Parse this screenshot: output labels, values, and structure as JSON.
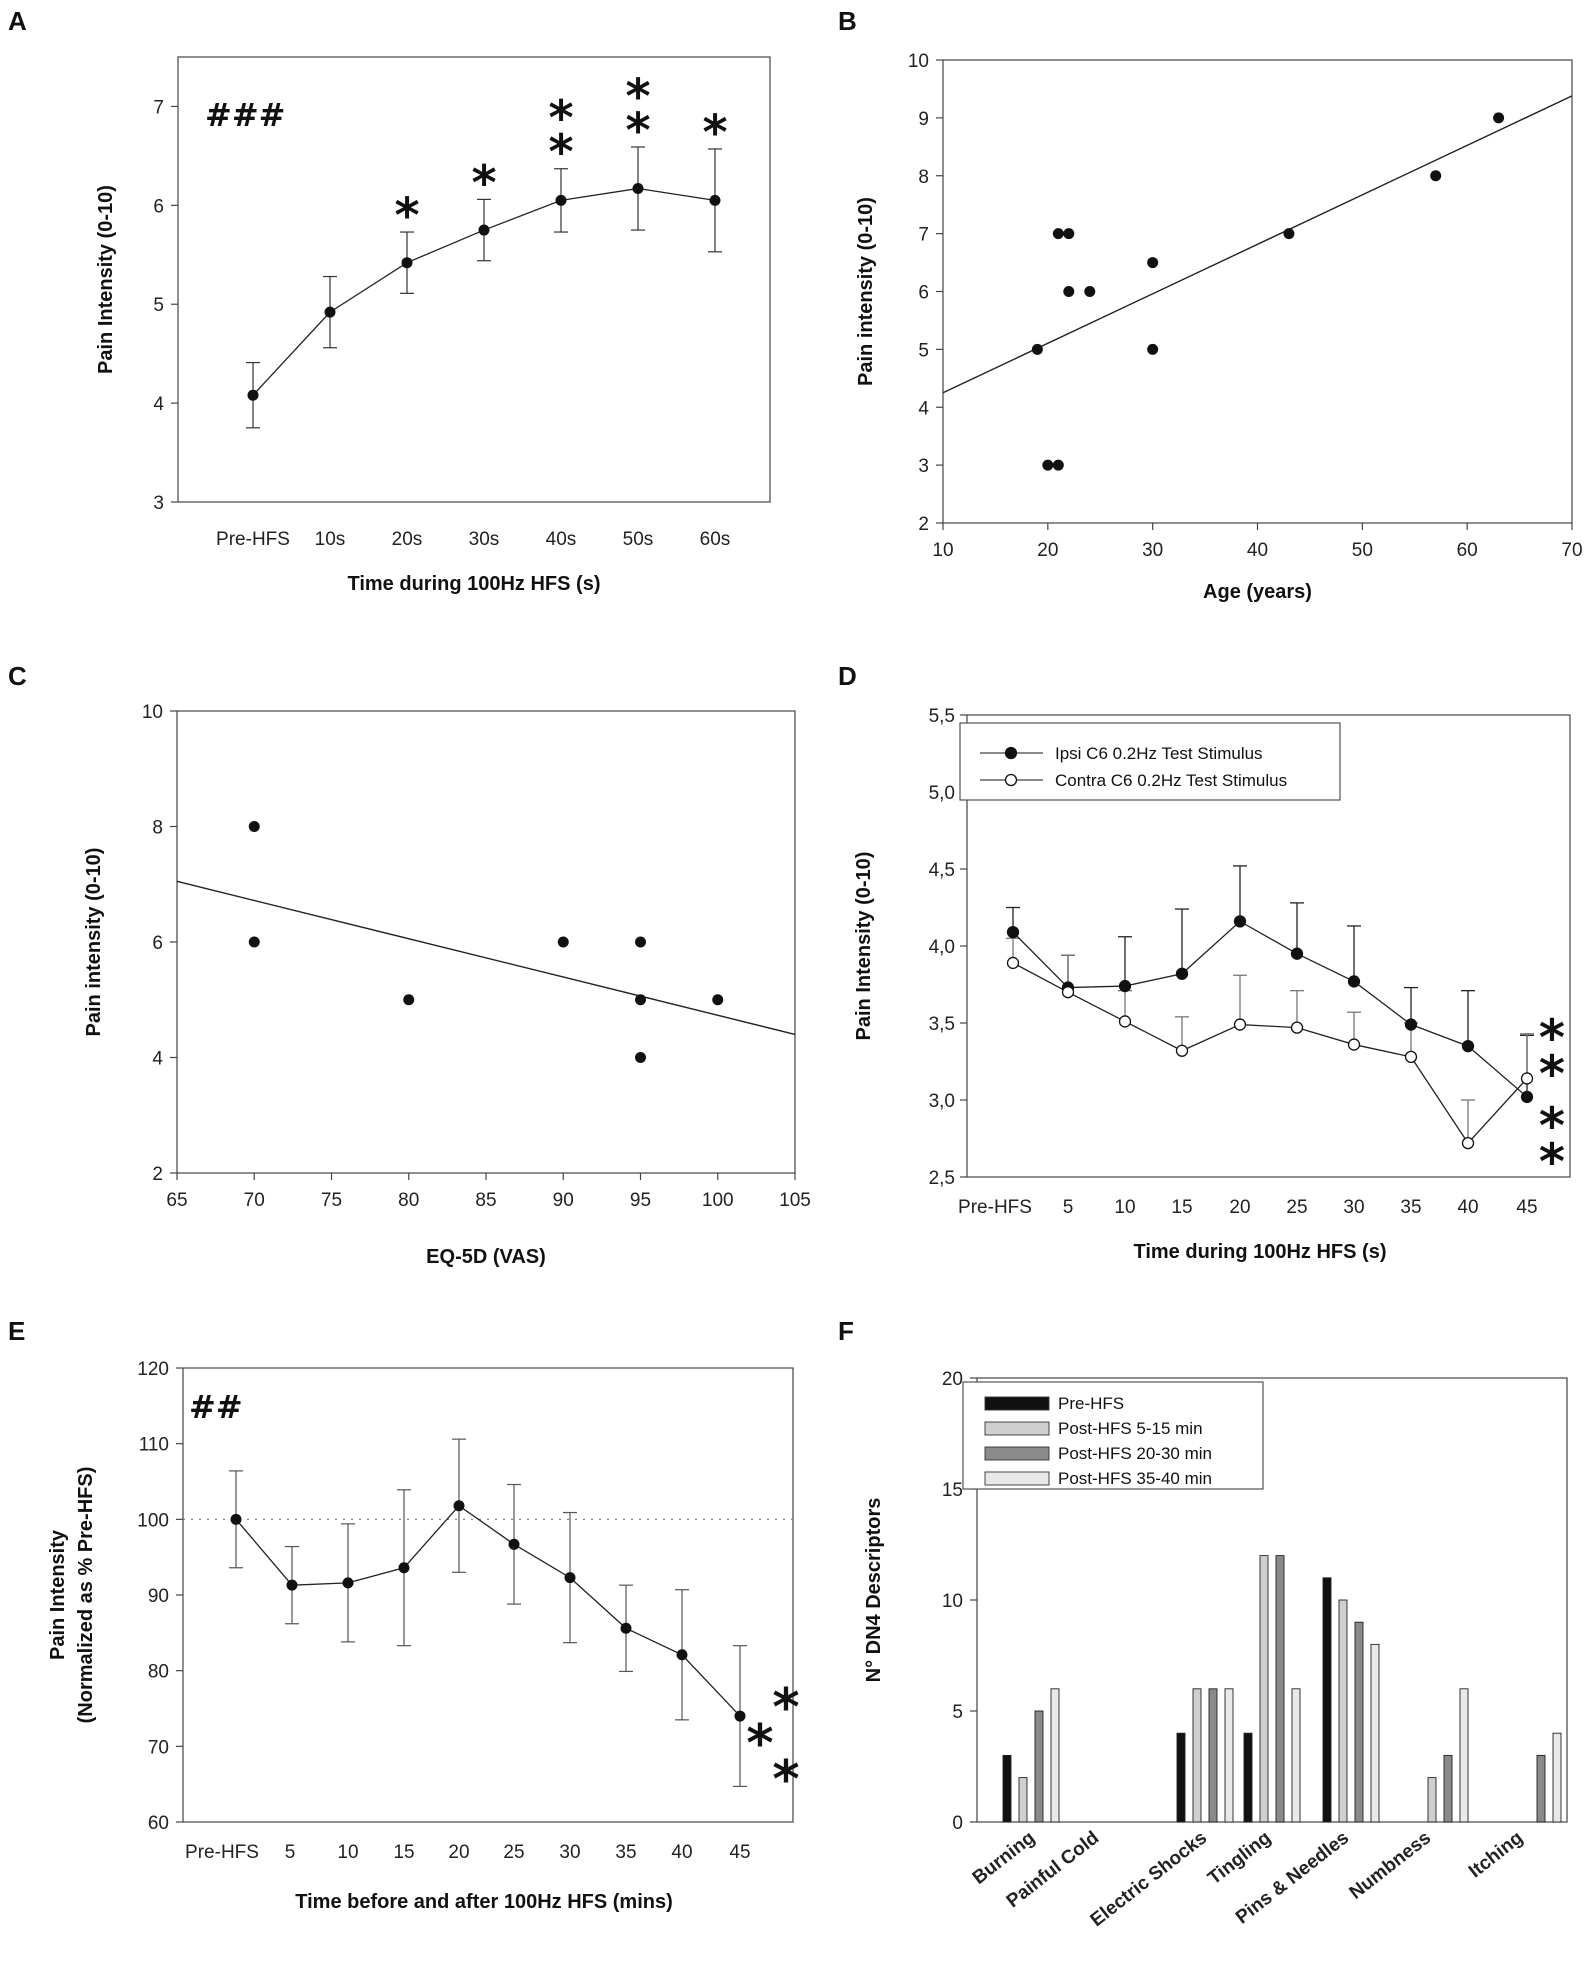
{
  "panels": [
    "A",
    "B",
    "C",
    "D",
    "E",
    "F"
  ],
  "chart_data": [
    {
      "panel": "A",
      "type": "line",
      "categories": [
        "Pre-HFS",
        "10s",
        "20s",
        "30s",
        "40s",
        "50s",
        "60s"
      ],
      "values": [
        4.08,
        4.92,
        5.42,
        5.75,
        6.05,
        6.17,
        6.05
      ],
      "errors": [
        0.33,
        0.36,
        0.31,
        0.31,
        0.32,
        0.42,
        0.52
      ],
      "ylim": [
        3,
        7.5
      ],
      "yticks": [
        "3",
        "4",
        "5",
        "6",
        "7"
      ],
      "xlabel": "Time during 100Hz HFS (s)",
      "ylabel": "Pain Intensity (0-10)",
      "annotations": {
        "hash": "###",
        "sig": [
          "",
          "",
          "*",
          "*",
          "**",
          "**",
          "*"
        ]
      }
    },
    {
      "panel": "B",
      "type": "scatter",
      "x": [
        19,
        20,
        21,
        21,
        22,
        22,
        24,
        30,
        30,
        43,
        57,
        63
      ],
      "y": [
        5,
        3,
        3,
        7,
        7,
        6,
        6,
        6.5,
        5,
        7,
        8,
        9
      ],
      "fit": [
        [
          10,
          4.25
        ],
        [
          70,
          9.38
        ]
      ],
      "xlim": [
        10,
        70
      ],
      "ylim": [
        2,
        10
      ],
      "xticks": [
        "10",
        "20",
        "30",
        "40",
        "50",
        "60",
        "70"
      ],
      "yticks": [
        "2",
        "3",
        "4",
        "5",
        "6",
        "7",
        "8",
        "9",
        "10"
      ],
      "xlabel": "Age (years)",
      "ylabel": "Pain intensity (0-10)"
    },
    {
      "panel": "C",
      "type": "scatter",
      "x": [
        70,
        70,
        80,
        90,
        95,
        95,
        95,
        100
      ],
      "y": [
        8,
        6,
        5,
        6,
        6,
        5,
        4,
        5
      ],
      "fit": [
        [
          65,
          7.05
        ],
        [
          105,
          4.4
        ]
      ],
      "xlim": [
        65,
        105
      ],
      "ylim": [
        2,
        10
      ],
      "xticks": [
        "65",
        "70",
        "75",
        "80",
        "85",
        "90",
        "95",
        "100",
        "105"
      ],
      "yticks": [
        "2",
        "4",
        "6",
        "8",
        "10"
      ],
      "xlabel": "EQ-5D (VAS)",
      "ylabel": "Pain intensity (0-10)"
    },
    {
      "panel": "D",
      "type": "line",
      "categories": [
        "Pre-HFS",
        "5",
        "10",
        "15",
        "20",
        "25",
        "30",
        "35",
        "40",
        "45"
      ],
      "series": [
        {
          "name": "Ipsi C6 0.2Hz Test Stimulus",
          "values": [
            4.09,
            3.73,
            3.74,
            3.82,
            4.16,
            3.95,
            3.77,
            3.49,
            3.35,
            3.02
          ],
          "errors": [
            0.16,
            0.21,
            0.32,
            0.42,
            0.36,
            0.33,
            0.36,
            0.24,
            0.36,
            0.4
          ]
        },
        {
          "name": "Contra C6 0.2Hz Test Stimulus",
          "values": [
            3.89,
            3.7,
            3.51,
            3.32,
            3.49,
            3.47,
            3.36,
            3.28,
            2.72,
            3.14
          ],
          "errors": [
            0.16,
            0.24,
            0.2,
            0.22,
            0.32,
            0.24,
            0.21,
            0.22,
            0.28,
            0.29
          ]
        }
      ],
      "ylim": [
        2.5,
        5.5
      ],
      "yticks": [
        "2,5",
        "3,0",
        "3,5",
        "4,0",
        "4,5",
        "5,0",
        "5,5"
      ],
      "xlabel": "Time during 100Hz HFS (s)",
      "ylabel": "Pain Intensity (0-10)",
      "annotations": {
        "sig_upper": "**",
        "sig_lower": "**"
      }
    },
    {
      "panel": "E",
      "type": "line",
      "categories": [
        "Pre-HFS",
        "5",
        "10",
        "15",
        "20",
        "25",
        "30",
        "35",
        "40",
        "45"
      ],
      "values": [
        100,
        91.3,
        91.6,
        93.6,
        101.8,
        96.7,
        92.3,
        85.6,
        82.1,
        74
      ],
      "errors": [
        6.4,
        5.1,
        7.8,
        10.3,
        8.8,
        7.9,
        8.6,
        5.7,
        8.6,
        9.3
      ],
      "reference": 100,
      "ylim": [
        60,
        120
      ],
      "yticks": [
        "60",
        "70",
        "80",
        "90",
        "100",
        "110",
        "120"
      ],
      "xlabel": "Time before and after 100Hz HFS (mins)",
      "ylabel_lines": [
        "Pain Intensity",
        "(Normalized as % Pre-HFS)"
      ],
      "annotations": {
        "hash": "##",
        "sig": "***"
      }
    },
    {
      "panel": "F",
      "type": "bar",
      "categories": [
        "Burning",
        "Painful Cold",
        "Electric Shocks",
        "Tingling",
        "Pins & Needles",
        "Numbness",
        "Itching"
      ],
      "series": [
        {
          "name": "Pre-HFS",
          "values": [
            3,
            0,
            4,
            4,
            11,
            0,
            0
          ],
          "color": "#111111"
        },
        {
          "name": "Post-HFS 5-15 min",
          "values": [
            2,
            0,
            6,
            12,
            10,
            2,
            0
          ],
          "color": "#cfcfcf"
        },
        {
          "name": "Post-HFS 20-30 min",
          "values": [
            5,
            0,
            6,
            12,
            9,
            3,
            3
          ],
          "color": "#8a8a8a"
        },
        {
          "name": "Post-HFS 35-40 min",
          "values": [
            6,
            0,
            6,
            6,
            8,
            6,
            4
          ],
          "color": "#e9e9e9"
        }
      ],
      "ylim": [
        0,
        20
      ],
      "yticks": [
        "0",
        "5",
        "10",
        "15",
        "20"
      ],
      "ylabel": "N° DN4 Descriptors"
    }
  ]
}
